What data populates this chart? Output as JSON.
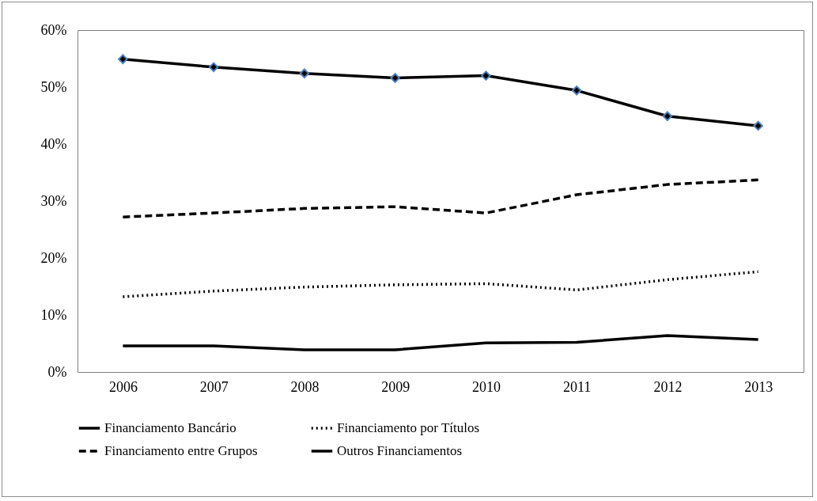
{
  "chart_data": {
    "type": "line",
    "categories": [
      "2006",
      "2007",
      "2008",
      "2009",
      "2010",
      "2011",
      "2012",
      "2013"
    ],
    "series": [
      {
        "name": "Financiamento Bancário",
        "color": "#000000",
        "line_style": "solid",
        "marker": "diamond",
        "values": [
          54.9,
          53.5,
          52.4,
          51.6,
          52.0,
          49.4,
          44.9,
          43.2
        ]
      },
      {
        "name": "Financiamento por Títulos",
        "color": "#000000",
        "line_style": "dotted",
        "values": [
          13.2,
          14.2,
          14.9,
          15.3,
          15.5,
          14.4,
          16.2,
          17.6
        ]
      },
      {
        "name": "Financiamento entre Grupos",
        "color": "#000000",
        "line_style": "dashed",
        "values": [
          27.2,
          27.9,
          28.7,
          29.0,
          27.9,
          31.1,
          32.9,
          33.7
        ]
      },
      {
        "name": "Outros Financiamentos",
        "color": "#000000",
        "line_style": "solid",
        "values": [
          4.6,
          4.6,
          3.9,
          3.9,
          5.1,
          5.2,
          6.4,
          5.7
        ]
      }
    ],
    "ylim": [
      0,
      60
    ],
    "yticks": [
      {
        "value": 0,
        "label": "0%"
      },
      {
        "value": 10,
        "label": "10%"
      },
      {
        "value": 20,
        "label": "20%"
      },
      {
        "value": 30,
        "label": "30%"
      },
      {
        "value": 40,
        "label": "40%"
      },
      {
        "value": 50,
        "label": "50%"
      },
      {
        "value": 60,
        "label": "60%"
      }
    ],
    "grid": false,
    "legend": "bottom"
  }
}
